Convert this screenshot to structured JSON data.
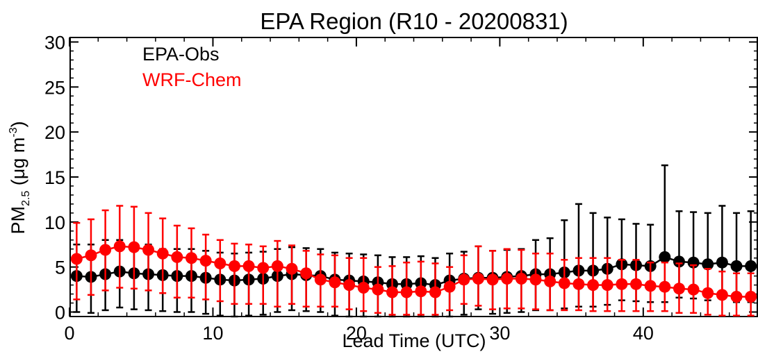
{
  "chart_data": {
    "type": "scatter",
    "title": "EPA Region (R10 - 20200831)",
    "xlabel": "Lead Time (UTC)",
    "ylabel": {
      "main": "PM",
      "subscript": "2.5",
      "unit_open": " (μg m",
      "unit_superscript": "-3",
      "unit_close": ")"
    },
    "xlim": [
      0,
      48
    ],
    "ylim": [
      -0.5,
      30.5
    ],
    "xticks": [
      0,
      10,
      20,
      30,
      40
    ],
    "yticks": [
      0,
      5,
      10,
      15,
      20,
      25,
      30
    ],
    "x_minor_step": 2,
    "y_minor_step": 1,
    "legend_position": "top-left",
    "x": [
      0.5,
      1.5,
      2.5,
      3.5,
      4.5,
      5.5,
      6.5,
      7.5,
      8.5,
      9.5,
      10.5,
      11.5,
      12.5,
      13.5,
      14.5,
      15.5,
      16.5,
      17.5,
      18.5,
      19.5,
      20.5,
      21.5,
      22.5,
      23.5,
      24.5,
      25.5,
      26.5,
      27.5,
      28.5,
      29.5,
      30.5,
      31.5,
      32.5,
      33.5,
      34.5,
      35.5,
      36.5,
      37.5,
      38.5,
      39.5,
      40.5,
      41.5,
      42.5,
      43.5,
      44.5,
      45.5,
      46.5,
      47.5
    ],
    "series": [
      {
        "name": "EPA-Obs",
        "color": "#000000",
        "values": [
          4.0,
          3.9,
          4.2,
          4.5,
          4.3,
          4.2,
          4.1,
          4.0,
          4.0,
          3.8,
          3.6,
          3.5,
          3.6,
          3.7,
          4.0,
          4.2,
          4.1,
          4.0,
          3.6,
          3.5,
          3.4,
          3.3,
          3.1,
          3.1,
          3.2,
          3.0,
          3.5,
          3.7,
          3.8,
          3.8,
          3.9,
          4.0,
          4.2,
          4.2,
          4.4,
          4.6,
          4.6,
          4.8,
          5.3,
          5.2,
          5.1,
          6.1,
          5.6,
          5.5,
          5.3,
          5.5,
          5.1,
          5.1
        ],
        "err_upper": [
          7.5,
          7.5,
          8.0,
          8.0,
          7.5,
          7.5,
          7.0,
          7.0,
          7.0,
          6.8,
          6.6,
          6.5,
          6.6,
          6.7,
          7.0,
          7.2,
          7.1,
          7.0,
          6.6,
          6.5,
          6.4,
          6.3,
          6.1,
          6.1,
          6.2,
          6.0,
          6.5,
          6.7,
          7.3,
          6.8,
          6.9,
          7.0,
          8.0,
          8.2,
          10.2,
          12.0,
          11.0,
          10.5,
          10.3,
          9.8,
          9.7,
          16.3,
          11.2,
          11.1,
          11.0,
          11.8,
          11.0,
          11.2
        ],
        "err_lower": [
          0.0,
          -0.1,
          0.2,
          0.5,
          0.3,
          0.2,
          0.1,
          0.0,
          0.0,
          -0.2,
          -0.4,
          -0.5,
          -0.4,
          -0.3,
          0.0,
          0.2,
          0.1,
          0.0,
          -0.4,
          -0.5,
          -0.6,
          -0.7,
          -0.9,
          -0.9,
          -0.8,
          -1.0,
          -0.5,
          -0.3,
          0.3,
          -0.2,
          -0.1,
          0.0,
          0.2,
          0.2,
          0.4,
          0.6,
          0.6,
          0.8,
          1.3,
          1.2,
          1.1,
          1.1,
          1.6,
          1.5,
          1.3,
          1.5,
          1.1,
          1.1
        ]
      },
      {
        "name": "WRF-Chem",
        "color": "#ff0000",
        "values": [
          5.9,
          6.3,
          6.9,
          7.3,
          7.2,
          6.9,
          6.5,
          6.1,
          6.0,
          5.7,
          5.4,
          5.1,
          5.1,
          4.9,
          5.1,
          4.8,
          4.3,
          3.6,
          3.3,
          3.0,
          2.7,
          2.5,
          2.2,
          2.2,
          2.3,
          2.2,
          2.8,
          3.6,
          3.7,
          3.6,
          3.7,
          3.7,
          3.6,
          3.4,
          3.2,
          3.1,
          3.0,
          3.0,
          3.1,
          3.1,
          2.9,
          2.8,
          2.6,
          2.5,
          2.1,
          1.9,
          1.7,
          1.7
        ],
        "err_upper": [
          9.9,
          10.3,
          11.3,
          11.8,
          11.7,
          11.0,
          10.4,
          9.6,
          9.3,
          8.6,
          8.0,
          7.6,
          7.5,
          7.3,
          7.9,
          7.4,
          6.8,
          6.4,
          6.3,
          6.0,
          6.0,
          5.0,
          5.1,
          5.5,
          5.6,
          5.4,
          5.0,
          6.3,
          7.3,
          6.8,
          7.0,
          6.9,
          6.5,
          6.5,
          5.8,
          6.0,
          6.0,
          6.0,
          5.8,
          5.8,
          5.5,
          5.5,
          5.4,
          5.2,
          4.8,
          4.5,
          4.3,
          4.3
        ],
        "err_lower": [
          1.4,
          1.9,
          2.4,
          2.7,
          2.6,
          2.4,
          2.1,
          1.6,
          1.6,
          1.4,
          1.2,
          0.9,
          0.9,
          0.9,
          0.6,
          0.9,
          0.6,
          0.6,
          0.6,
          0.3,
          0.1,
          -0.1,
          -0.3,
          -0.3,
          -0.3,
          -0.3,
          0.2,
          0.9,
          0.7,
          0.3,
          0.4,
          0.4,
          0.3,
          0.2,
          0.2,
          0.2,
          0.1,
          0.1,
          0.1,
          0.1,
          0.1,
          0.1,
          -0.1,
          -0.1,
          -0.3,
          -0.4,
          -0.4,
          -0.4
        ]
      }
    ]
  }
}
